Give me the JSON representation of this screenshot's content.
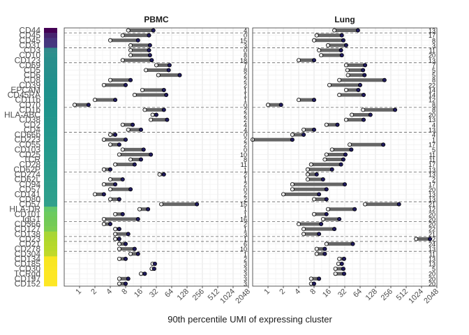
{
  "chart_data": {
    "type": "dumbbell",
    "xlabel": "90th percentile UMI of expressing cluster",
    "x_scale": "log2",
    "xlim": [
      0.5,
      2048
    ],
    "x_ticks": [
      "1",
      "2",
      "4",
      "8",
      "16",
      "32",
      "64",
      "128",
      "256",
      "512",
      "1024",
      "2048"
    ],
    "x_tick_values": [
      1,
      2,
      4,
      8,
      16,
      32,
      64,
      128,
      256,
      512,
      1024,
      2048
    ],
    "panels": [
      "PBMC",
      "Lung"
    ],
    "colors": {
      "segment": "#666666",
      "point_low": "#e8e8e8",
      "point_high": "#1f1a5e",
      "dashed_line": "#666666",
      "grid": "#e0e0e0",
      "panel_border": "#333333",
      "label": "#4d4d4d",
      "title": "#1a1a1a"
    },
    "group_separators_after_row": [
      0,
      3,
      6,
      15,
      20,
      28,
      34,
      38,
      41,
      42,
      44
    ],
    "markers": [
      "CD44",
      "CD45",
      "CD45",
      "CD31",
      "CD3",
      "CD10",
      "CD123",
      "CD69",
      "CD5",
      "CD6",
      "CD8",
      "CD39",
      "EPCAM",
      "CD45RA",
      "CD11b",
      "CD70",
      "CD1b",
      "HLA-ABC",
      "CD38",
      "CD2",
      "CD4",
      "CD66b",
      "CD223",
      "CD55",
      "CD103",
      "CD25",
      "TCR",
      "CD28",
      "CD62P",
      "CD274",
      "CD62L",
      "CD94",
      "CD57",
      "CD141",
      "CD80",
      "CD57",
      "HLA-DR",
      "CD101",
      "IgG1",
      "CD366",
      "CD127",
      "CD138",
      "CD23",
      "CD21",
      "CD278",
      "CD304",
      "CD134",
      "CD185",
      "CD30",
      "TCRgd",
      "CD197",
      "CD152"
    ],
    "row_colors": [
      "#440154",
      "#46246e",
      "#46357d",
      "#45387f",
      "#318b8c",
      "#2c8f8c",
      "#298e8c",
      "#288f8c",
      "#268f8c",
      "#248f8c",
      "#22908c",
      "#20918c",
      "#1f918c",
      "#1f928c",
      "#1f928c",
      "#1f938c",
      "#1f948c",
      "#1f958c",
      "#21958c",
      "#21968c",
      "#22978c",
      "#22978c",
      "#23988c",
      "#23998c",
      "#24998c",
      "#259a8c",
      "#269a8c",
      "#279b8c",
      "#289c8c",
      "#299c8c",
      "#2a9d8c",
      "#2b9d8c",
      "#2c9e8c",
      "#2d9f8c",
      "#2e9f8c",
      "#30a08c",
      "#64c86a",
      "#6ccb5f",
      "#70ca59",
      "#74cb56",
      "#7bcd51",
      "#a8d636",
      "#aed72f",
      "#b4d82c",
      "#b9d92a",
      "#c0d92a",
      "#f8e621",
      "#f9e622",
      "#fbe723",
      "#fde724",
      "#fde725",
      "#fde725"
    ],
    "series": [
      {
        "name": "PBMC",
        "low": [
          9,
          7,
          4,
          10,
          10,
          10,
          7,
          32,
          20,
          35,
          4,
          3,
          17,
          12,
          2,
          0.8,
          19,
          27,
          25,
          7,
          9,
          4,
          3,
          4,
          7,
          6,
          10,
          5,
          3,
          37,
          4,
          3,
          4,
          2,
          4,
          40,
          15,
          5,
          3,
          3,
          5,
          5,
          5,
          6,
          6,
          10,
          6,
          27,
          26,
          16,
          6,
          6
        ],
        "high": [
          28,
          23,
          14,
          24,
          23,
          24,
          26,
          58,
          56,
          92,
          10,
          8,
          45,
          50,
          5,
          1.5,
          45,
          32,
          52,
          11,
          16,
          5,
          8,
          6,
          18,
          25,
          16,
          12,
          4,
          45,
          7,
          5,
          10,
          3,
          6,
          200,
          22,
          7,
          14,
          4,
          6,
          9,
          6,
          8,
          12,
          14,
          8,
          30,
          29,
          19,
          9,
          8
        ],
        "counts": [
          "4",
          "0",
          "15",
          "3",
          "0",
          "8",
          "18",
          "7",
          "8",
          "2",
          "2",
          "2",
          "1",
          "1",
          "1",
          "0",
          "2",
          "2",
          "2",
          "4",
          "4",
          "0",
          "2",
          "2",
          "0",
          "10",
          "8",
          "11",
          "1",
          "2",
          "1",
          "2",
          "0",
          "2",
          "2",
          "15",
          "1",
          "1",
          "16",
          "2",
          "1",
          "3",
          "1",
          "6",
          "10",
          "1",
          "2",
          "3",
          "3",
          "3",
          "3",
          "3"
        ]
      },
      {
        "name": "Lung",
        "low": [
          20,
          9,
          8,
          15,
          10,
          11,
          4,
          34,
          36,
          37,
          25,
          16,
          34,
          25,
          4,
          1,
          73,
          44,
          34,
          14,
          5,
          3,
          0.5,
          40,
          18,
          14,
          13,
          7,
          6,
          6,
          6,
          3,
          3,
          2,
          8,
          80,
          15,
          8,
          12,
          4,
          5,
          5,
          800,
          14,
          9,
          9,
          25,
          24,
          21,
          21,
          7,
          7
        ],
        "high": [
          58,
          28,
          30,
          34,
          27,
          28,
          8,
          80,
          73,
          78,
          192,
          64,
          59,
          75,
          8,
          1.8,
          310,
          102,
          75,
          23,
          8,
          5,
          3,
          182,
          43,
          33,
          30,
          27,
          18,
          9,
          12,
          32,
          14,
          10,
          14,
          370,
          50,
          14,
          25,
          11,
          20,
          10,
          1500,
          46,
          13,
          13,
          31,
          28,
          30,
          31,
          10,
          8
        ],
        "counts": [
          "13",
          "17",
          "8",
          "3",
          "11",
          "20",
          "13",
          "7",
          "5",
          "5",
          "8",
          "22",
          "14",
          "14",
          "12",
          "8",
          "8",
          "20",
          "13",
          "4",
          "13",
          "4",
          "1",
          "17",
          "5",
          "11",
          "11",
          "17",
          "13",
          "13",
          "2",
          "17",
          "20",
          "13",
          "13",
          "21",
          "12",
          "20",
          "20",
          "20",
          "22",
          "21",
          "2",
          "24",
          "13",
          "11",
          "13",
          "13",
          "5",
          "20",
          "20",
          "20"
        ]
      }
    ]
  }
}
